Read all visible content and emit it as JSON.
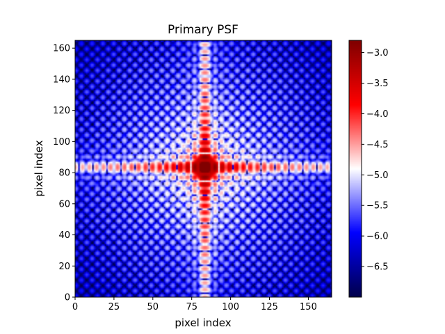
{
  "chart_data": {
    "type": "heatmap",
    "title": "Primary PSF",
    "xlabel": "pixel index",
    "ylabel": "pixel index",
    "xlim": [
      0,
      165
    ],
    "ylim": [
      0,
      165
    ],
    "xticks": [
      0,
      25,
      50,
      75,
      100,
      125,
      150
    ],
    "yticks": [
      0,
      20,
      40,
      60,
      80,
      100,
      120,
      140,
      160
    ],
    "center": [
      83,
      83
    ],
    "colormap": "seismic",
    "colorbar": {
      "range": [
        -7.0,
        -2.8
      ],
      "ticks": [
        -3.0,
        -3.5,
        -4.0,
        -4.5,
        -5.0,
        -5.5,
        -6.0,
        -6.5
      ],
      "tick_labels": [
        "−3.0",
        "−3.5",
        "−4.0",
        "−4.5",
        "−5.0",
        "−5.5",
        "−6.0",
        "−6.5"
      ]
    },
    "grid": false
  }
}
